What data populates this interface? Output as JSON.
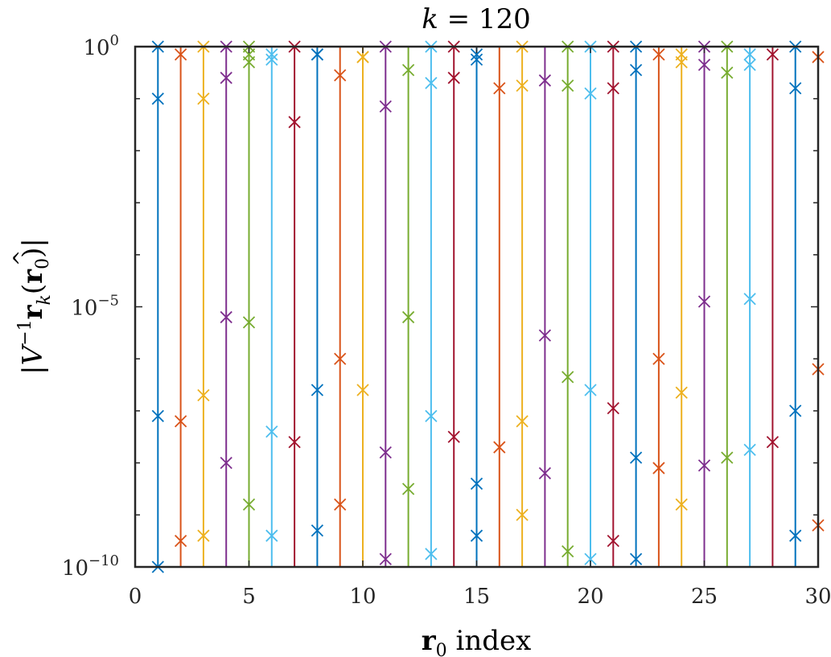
{
  "chart_data": {
    "type": "scatter",
    "title": "k = 120",
    "title_parts": {
      "var": "k",
      "rest": " = 120"
    },
    "xlabel": "r0 index",
    "xlabel_parts": {
      "bold": "r",
      "sub": "0",
      "rest": " index"
    },
    "ylabel": "|V^-1 r̂_k(r0)|",
    "ylabel_parts": {
      "open": "|",
      "V": "V",
      "sup": "−1",
      "r": "r",
      "hat": "^",
      "k": "k",
      "paren_open": "(",
      "r0": "r",
      "zero": "0",
      "paren_close": ")",
      "close": "|"
    },
    "xlim": [
      0,
      30
    ],
    "ylim_log10": [
      -10,
      0
    ],
    "yscale": "log",
    "grid": false,
    "legend": "none",
    "x_ticks": [
      "0",
      "5",
      "10",
      "15",
      "20",
      "25",
      "30"
    ],
    "y_ticks": [
      {
        "base": "10",
        "exp": "−10"
      },
      {
        "base": "10",
        "exp": "−5"
      },
      {
        "base": "10",
        "exp": "0"
      }
    ],
    "colors": [
      "#0072BD",
      "#D95319",
      "#EDB120",
      "#7E2F8E",
      "#77AC30",
      "#4DBEEE",
      "#A2142F"
    ],
    "marker": "x",
    "series": [
      {
        "x": 1,
        "log10_values": [
          -0.0,
          -1.0,
          -7.1,
          -10.0
        ]
      },
      {
        "x": 2,
        "log10_values": [
          -0.15,
          -7.2,
          -9.5
        ]
      },
      {
        "x": 3,
        "log10_values": [
          -0.0,
          -1.0,
          -6.7,
          -9.4
        ]
      },
      {
        "x": 4,
        "log10_values": [
          -0.0,
          -0.6,
          -5.2,
          -8.0
        ]
      },
      {
        "x": 5,
        "log10_values": [
          -0.0,
          -0.15,
          -0.3,
          -5.3,
          -8.8
        ]
      },
      {
        "x": 6,
        "log10_values": [
          -0.15,
          -0.25,
          -7.4,
          -9.4
        ]
      },
      {
        "x": 7,
        "log10_values": [
          -0.0,
          -1.45,
          -7.6
        ]
      },
      {
        "x": 8,
        "log10_values": [
          -0.15,
          -0.15,
          -6.6,
          -9.3
        ]
      },
      {
        "x": 9,
        "log10_values": [
          -0.55,
          -6.0,
          -8.8
        ]
      },
      {
        "x": 10,
        "log10_values": [
          -0.2,
          -0.2,
          -6.6
        ]
      },
      {
        "x": 11,
        "log10_values": [
          -0.0,
          -1.15,
          -7.8,
          -9.85
        ]
      },
      {
        "x": 12,
        "log10_values": [
          -0.45,
          -5.2,
          -8.5
        ]
      },
      {
        "x": 13,
        "log10_values": [
          -0.0,
          -0.7,
          -7.1,
          -9.75
        ]
      },
      {
        "x": 14,
        "log10_values": [
          -0.0,
          -0.6,
          -7.5
        ]
      },
      {
        "x": 15,
        "log10_values": [
          -0.15,
          -0.25,
          -8.4,
          -9.4
        ]
      },
      {
        "x": 16,
        "log10_values": [
          -0.8,
          -7.7
        ]
      },
      {
        "x": 17,
        "log10_values": [
          -0.0,
          -0.75,
          -7.2,
          -9.0
        ]
      },
      {
        "x": 18,
        "log10_values": [
          -0.65,
          -5.55,
          -8.2
        ]
      },
      {
        "x": 19,
        "log10_values": [
          -0.0,
          -0.75,
          -6.35,
          -9.7
        ]
      },
      {
        "x": 20,
        "log10_values": [
          -0.0,
          -0.9,
          -6.6,
          -9.85
        ]
      },
      {
        "x": 21,
        "log10_values": [
          -0.0,
          -0.8,
          -6.95,
          -9.5
        ]
      },
      {
        "x": 22,
        "log10_values": [
          -0.0,
          -0.45,
          -7.9,
          -9.85
        ]
      },
      {
        "x": 23,
        "log10_values": [
          -0.15,
          -6.0,
          -8.1
        ]
      },
      {
        "x": 24,
        "log10_values": [
          -0.15,
          -0.3,
          -6.65,
          -8.8
        ]
      },
      {
        "x": 25,
        "log10_values": [
          -0.0,
          -0.35,
          -4.9,
          -8.05
        ]
      },
      {
        "x": 26,
        "log10_values": [
          -0.0,
          -0.5,
          -7.9
        ]
      },
      {
        "x": 27,
        "log10_values": [
          -0.15,
          -0.35,
          -4.85,
          -7.75
        ]
      },
      {
        "x": 28,
        "log10_values": [
          -0.15,
          -7.6
        ]
      },
      {
        "x": 29,
        "log10_values": [
          -0.0,
          -0.8,
          -7.0,
          -9.4
        ]
      },
      {
        "x": 30,
        "log10_values": [
          -0.2,
          -6.2,
          -9.2
        ]
      }
    ]
  }
}
